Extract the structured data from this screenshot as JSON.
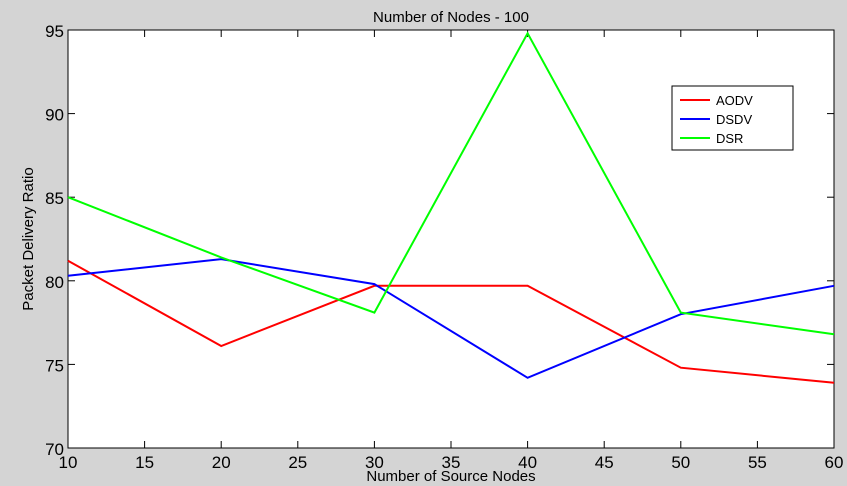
{
  "chart_data": {
    "type": "line",
    "title": "Number of Nodes - 100",
    "xlabel": "Number of Source Nodes",
    "ylabel": "Packet Delivery Ratio",
    "x": [
      10,
      20,
      30,
      40,
      50,
      60
    ],
    "xlim": [
      10,
      60
    ],
    "ylim": [
      70,
      95
    ],
    "xticks": [
      "10",
      "15",
      "20",
      "25",
      "30",
      "35",
      "40",
      "45",
      "50",
      "55",
      "60"
    ],
    "yticks": [
      "70",
      "75",
      "80",
      "85",
      "90",
      "95"
    ],
    "grid": false,
    "legend_position": "top-right",
    "series": [
      {
        "name": "AODV",
        "color": "#ff0000",
        "values": [
          81.2,
          76.1,
          79.7,
          79.7,
          74.8,
          73.9
        ]
      },
      {
        "name": "DSDV",
        "color": "#0000ff",
        "values": [
          80.3,
          81.3,
          79.8,
          74.2,
          78.0,
          79.7
        ]
      },
      {
        "name": "DSR",
        "color": "#00ff00",
        "values": [
          85.0,
          81.4,
          78.1,
          94.8,
          78.1,
          76.8
        ]
      }
    ]
  }
}
